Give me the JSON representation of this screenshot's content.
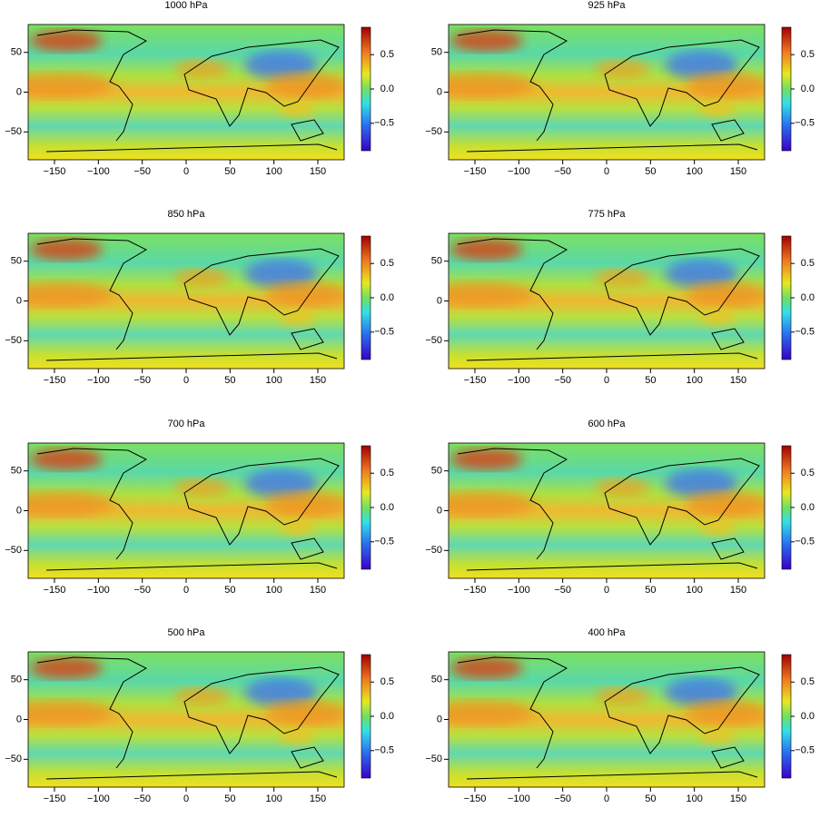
{
  "panels": [
    {
      "title": "1000 hPa"
    },
    {
      "title": "925 hPa"
    },
    {
      "title": "850 hPa"
    },
    {
      "title": "775 hPa"
    },
    {
      "title": "700 hPa"
    },
    {
      "title": "600 hPa"
    },
    {
      "title": "500 hPa"
    },
    {
      "title": "400 hPa"
    }
  ],
  "x_axis": {
    "lim": [
      -180,
      180
    ],
    "ticks": [
      {
        "value": -150,
        "label": "−150"
      },
      {
        "value": -100,
        "label": "−100"
      },
      {
        "value": -50,
        "label": "−50"
      },
      0,
      50,
      100,
      150
    ]
  },
  "y_axis": {
    "lim": [
      -85,
      85
    ],
    "ticks": [
      {
        "value": -50,
        "label": "−50"
      },
      0,
      50
    ]
  },
  "colorbar": {
    "lim": [
      -0.9,
      0.9
    ],
    "ticks": [
      {
        "value": -0.5,
        "label": "−0.5"
      },
      {
        "value": 0,
        "label": "0.0"
      },
      0.5
    ]
  }
}
